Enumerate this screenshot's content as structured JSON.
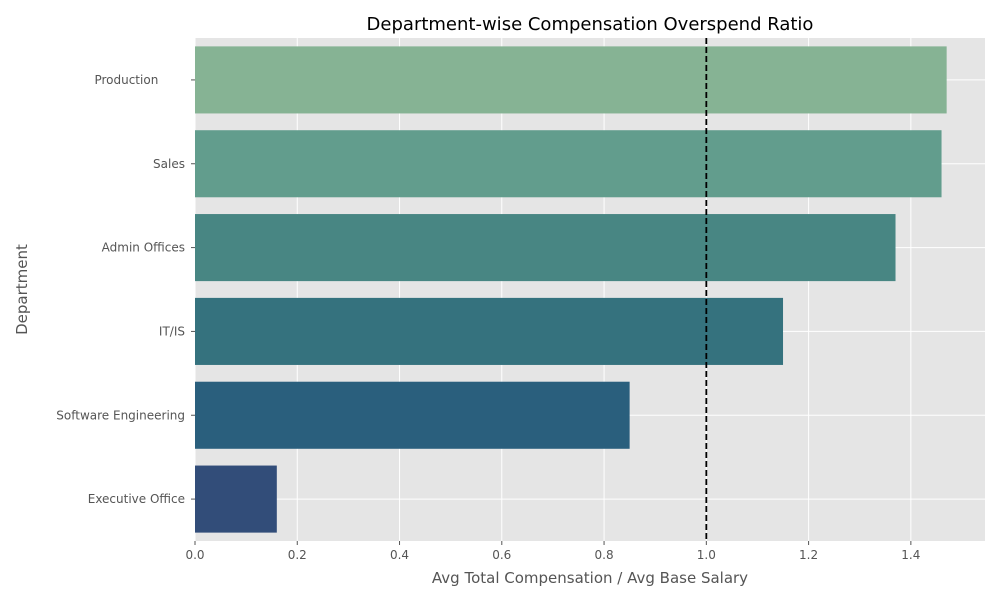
{
  "chart_data": {
    "type": "bar",
    "orientation": "horizontal",
    "title": "Department-wise Compensation Overspend Ratio",
    "xlabel": "Avg Total Compensation / Avg Base Salary",
    "ylabel": "Department",
    "categories": [
      "Production       ",
      "Sales",
      "Admin Offices",
      "IT/IS",
      "Software Engineering",
      "Executive Office"
    ],
    "values": [
      1.47,
      1.46,
      1.37,
      1.15,
      0.85,
      0.16
    ],
    "colors": [
      "#86b394",
      "#629d8d",
      "#488683",
      "#35727e",
      "#2a5f7d",
      "#324d79"
    ],
    "xlim": [
      0,
      1.545
    ],
    "xticks": [
      0.0,
      0.2,
      0.4,
      0.6,
      0.8,
      1.0,
      1.2,
      1.4
    ],
    "xtick_labels": [
      "0.0",
      "0.2",
      "0.4",
      "0.6",
      "0.8",
      "1.0",
      "1.2",
      "1.4"
    ],
    "reference_line": {
      "x": 1.0,
      "style": "dashed",
      "color": "#000000"
    },
    "grid": true,
    "background_color": "#e5e5e5",
    "grid_color": "#ffffff",
    "tick_color": "#555555"
  }
}
